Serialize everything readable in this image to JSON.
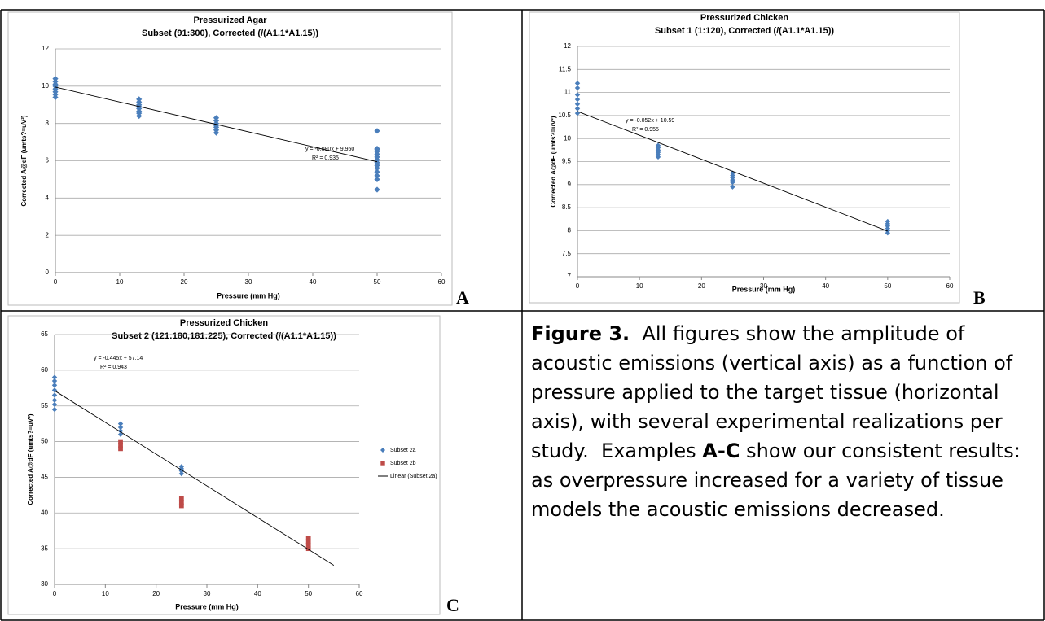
{
  "chart_data": [
    {
      "type": "scatter",
      "panel": "A",
      "title": "Pressurized Agar",
      "subtitle": "Subset (91:300), Corrected (/(A1.1*A1.15))",
      "x_label": "Pressure (mm Hg)",
      "y_label": "Corrected A@dF (umts?=uV²)",
      "xlim": [
        0,
        60
      ],
      "ylim": [
        0,
        12
      ],
      "xticks": [
        0,
        10,
        20,
        30,
        40,
        50,
        60
      ],
      "yticks": [
        0,
        2,
        4,
        6,
        8,
        10,
        12
      ],
      "grid": true,
      "annotations": [
        "y = -0.080x + 9.950",
        "R² = 0.935"
      ],
      "series": [
        {
          "kind": "scatter",
          "marker": "diamond",
          "color": "#4a7ebb",
          "x": [
            0,
            0,
            0,
            0,
            0,
            0,
            0,
            0,
            13,
            13,
            13,
            13,
            13,
            13,
            13,
            13,
            25,
            25,
            25,
            25,
            25,
            25,
            25,
            50,
            50,
            50,
            50,
            50,
            50,
            50,
            50,
            50,
            50,
            50,
            50,
            50,
            50
          ],
          "values": [
            9.4,
            9.55,
            9.7,
            9.85,
            10.0,
            10.1,
            10.25,
            10.4,
            8.4,
            8.55,
            8.65,
            8.8,
            8.9,
            9.0,
            9.15,
            9.3,
            7.5,
            7.65,
            7.8,
            7.9,
            8.0,
            8.15,
            8.3,
            4.45,
            5.0,
            5.2,
            5.4,
            5.6,
            5.75,
            5.9,
            6.05,
            6.2,
            6.35,
            6.5,
            6.6,
            6.65,
            7.6
          ]
        },
        {
          "kind": "line",
          "color": "#000000",
          "x": [
            0,
            50
          ],
          "values": [
            9.95,
            5.95
          ]
        }
      ]
    },
    {
      "type": "scatter",
      "panel": "B",
      "title": "Pressurized Chicken",
      "subtitle": "Subset 1 (1:120), Corrected (/(A1.1*A1.15))",
      "x_label": "Pressure (mm Hg)",
      "y_label": "Corrected A@dF (umts?=uV²)",
      "xlim": [
        0,
        60
      ],
      "ylim": [
        7,
        12
      ],
      "xticks": [
        0,
        10,
        20,
        30,
        40,
        50,
        60
      ],
      "yticks": [
        7,
        7.5,
        8,
        8.5,
        9,
        9.5,
        10,
        10.5,
        11,
        11.5,
        12
      ],
      "grid": true,
      "annotations": [
        "y = -0.052x + 10.59",
        "R² = 0.955"
      ],
      "series": [
        {
          "kind": "scatter",
          "marker": "diamond",
          "color": "#4a7ebb",
          "x": [
            0,
            0,
            0,
            0,
            0,
            0,
            0,
            13,
            13,
            13,
            13,
            13,
            13,
            25,
            25,
            25,
            25,
            25,
            25,
            50,
            50,
            50,
            50,
            50,
            50
          ],
          "values": [
            10.55,
            10.65,
            10.75,
            10.85,
            10.95,
            11.1,
            11.2,
            9.6,
            9.65,
            9.7,
            9.75,
            9.8,
            9.85,
            8.95,
            9.05,
            9.1,
            9.15,
            9.2,
            9.25,
            7.95,
            8.0,
            8.05,
            8.1,
            8.15,
            8.2
          ]
        },
        {
          "kind": "line",
          "color": "#000000",
          "x": [
            0,
            50
          ],
          "values": [
            10.59,
            7.99
          ]
        }
      ]
    },
    {
      "type": "scatter",
      "panel": "C",
      "title": "Pressurized Chicken",
      "subtitle": "Subset 2 (121:180,181:225), Corrected (/(A1.1*A1.15))",
      "x_label": "Pressure (mm Hg)",
      "y_label": "Corrected A@dF (umts?=uV²)",
      "xlim": [
        0,
        60
      ],
      "ylim": [
        30,
        65
      ],
      "xticks": [
        0,
        10,
        20,
        30,
        40,
        50,
        60
      ],
      "yticks": [
        30,
        35,
        40,
        45,
        50,
        55,
        60,
        65
      ],
      "grid": true,
      "annotations": [
        "y = -0.445x + 57.14",
        "R² = 0.943"
      ],
      "series": [
        {
          "kind": "scatter",
          "name": "Subset 2a",
          "marker": "diamond",
          "color": "#4a7ebb",
          "x": [
            0,
            0,
            0,
            0,
            0,
            0,
            0,
            0,
            13,
            13,
            13,
            13,
            25,
            25,
            25,
            25
          ],
          "values": [
            54.5,
            55.2,
            55.8,
            56.5,
            57.2,
            57.9,
            58.5,
            59,
            51,
            51.5,
            52,
            52.5,
            45.5,
            45.9,
            46.2,
            46.5
          ]
        },
        {
          "kind": "scatter",
          "name": "Subset 2b",
          "marker": "square",
          "color": "#be4b48",
          "x": [
            13,
            13,
            13,
            25,
            25,
            25,
            50,
            50,
            50,
            50
          ],
          "values": [
            49,
            49.5,
            50,
            41,
            41.5,
            42,
            35,
            35.5,
            36,
            36.5
          ]
        },
        {
          "kind": "line",
          "name": "Linear (Subset 2a)",
          "color": "#000000",
          "x": [
            0,
            55
          ],
          "values": [
            57.14,
            32.67
          ]
        }
      ]
    }
  ],
  "caption": [
    {
      "text": "Figure 3.",
      "bold": true
    },
    {
      "text": "  All figures show the amplitude of acoustic emissions (vertical axis) as a function of pressure applied to the target tissue (horizontal axis), with several experimental realizations per study.  Examples ",
      "bold": false
    },
    {
      "text": "A-C",
      "bold": true
    },
    {
      "text": " show our consistent results: as overpressure increased for a variety of tissue models the acoustic emissions decreased.",
      "bold": false
    }
  ]
}
